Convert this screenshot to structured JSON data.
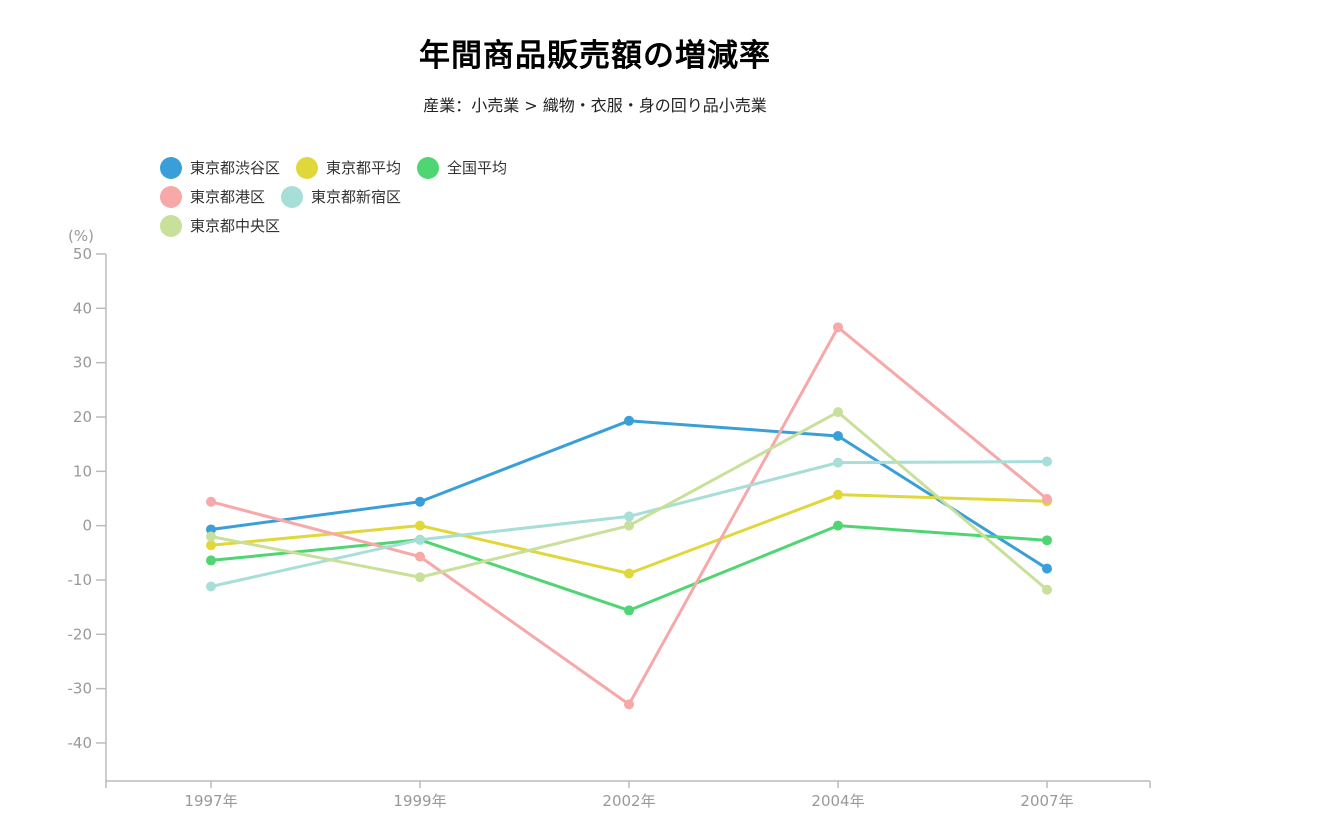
{
  "chart_data": {
    "type": "line",
    "title": "年間商品販売額の増減率",
    "subtitle": "産業：小売業 > 織物・衣服・身の回り品小売業",
    "y_unit_label": "(%)",
    "categories": [
      "1997年",
      "1999年",
      "2002年",
      "2004年",
      "2007年"
    ],
    "ylim": [
      -47,
      50
    ],
    "yticks": [
      50,
      40,
      30,
      20,
      10,
      0,
      -10,
      -20,
      -30,
      -40
    ],
    "grid": false,
    "legend_position": "top-left",
    "series": [
      {
        "name": "東京都渋谷区",
        "color": "#3a9fd8",
        "values": [
          -0.7,
          4.4,
          19.3,
          16.5,
          -7.9
        ]
      },
      {
        "name": "東京都平均",
        "color": "#e0d83a",
        "values": [
          -3.6,
          0.0,
          -8.8,
          5.7,
          4.5
        ]
      },
      {
        "name": "全国平均",
        "color": "#4fd672",
        "values": [
          -6.4,
          -2.6,
          -15.6,
          0.0,
          -2.7
        ]
      },
      {
        "name": "東京都港区",
        "color": "#f7a8a8",
        "values": [
          4.4,
          -5.7,
          -32.9,
          36.5,
          4.9
        ]
      },
      {
        "name": "東京都新宿区",
        "color": "#a8ded8",
        "values": [
          -11.2,
          -2.6,
          1.7,
          11.6,
          11.8
        ]
      },
      {
        "name": "東京都中央区",
        "color": "#c8e09a",
        "values": [
          -2.0,
          -9.5,
          0.0,
          20.9,
          -11.8
        ]
      }
    ]
  }
}
